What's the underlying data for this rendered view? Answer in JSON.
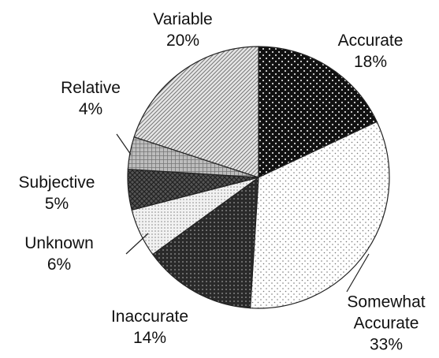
{
  "chart_data": {
    "type": "pie",
    "categories": [
      "Accurate",
      "Somewhat Accurate",
      "Inaccurate",
      "Unknown",
      "Subjective",
      "Relative",
      "Variable"
    ],
    "values": [
      18,
      33,
      14,
      6,
      5,
      4,
      20
    ],
    "value_labels": [
      "18%",
      "33%",
      "14%",
      "6%",
      "5%",
      "4%",
      "20%"
    ],
    "colors": [
      "#111111",
      "#ffffff",
      "#2a2a2a",
      "#f2f2f2",
      "#555555",
      "#bdbdbd",
      "#e6e6e6"
    ]
  }
}
